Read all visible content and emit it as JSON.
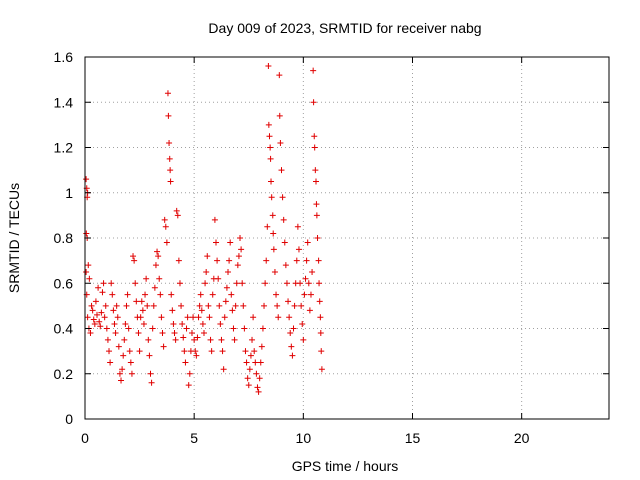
{
  "chart_data": {
    "type": "scatter",
    "title": "Day 009 of 2023, SRMTID for receiver nabg",
    "xlabel": "GPS time / hours",
    "ylabel": "SRMTID / TECUs",
    "xlim": [
      0,
      24
    ],
    "ylim": [
      0,
      1.6
    ],
    "x_ticks": [
      0,
      5,
      10,
      15,
      20
    ],
    "x_tick_labels": [
      "0",
      "5",
      "10",
      "15",
      "20"
    ],
    "y_ticks": [
      0,
      0.2,
      0.4,
      0.6,
      0.8,
      1.0,
      1.2,
      1.4,
      1.6
    ],
    "y_tick_labels": [
      "0",
      "0.2",
      "0.4",
      "0.6",
      "0.8",
      "1",
      "1.2",
      "1.4",
      "1.6"
    ],
    "grid": true,
    "marker": "+",
    "marker_color": "#e00000",
    "series": [
      {
        "name": "SRMTID",
        "points": [
          [
            0.05,
            1.06
          ],
          [
            0.08,
            1.02
          ],
          [
            0.1,
            0.98
          ],
          [
            0.12,
            1.0
          ],
          [
            0.06,
            0.82
          ],
          [
            0.1,
            0.8
          ],
          [
            0.05,
            0.65
          ],
          [
            0.15,
            0.68
          ],
          [
            0.2,
            0.62
          ],
          [
            0.08,
            0.55
          ],
          [
            0.12,
            0.45
          ],
          [
            0.18,
            0.4
          ],
          [
            0.25,
            0.38
          ],
          [
            0.3,
            0.5
          ],
          [
            0.35,
            0.48
          ],
          [
            0.4,
            0.44
          ],
          [
            0.45,
            0.42
          ],
          [
            0.5,
            0.52
          ],
          [
            0.55,
            0.46
          ],
          [
            0.6,
            0.58
          ],
          [
            0.65,
            0.43
          ],
          [
            0.7,
            0.41
          ],
          [
            0.75,
            0.47
          ],
          [
            0.8,
            0.56
          ],
          [
            0.85,
            0.6
          ],
          [
            0.9,
            0.45
          ],
          [
            0.95,
            0.5
          ],
          [
            1.0,
            0.4
          ],
          [
            1.05,
            0.35
          ],
          [
            1.1,
            0.3
          ],
          [
            1.15,
            0.25
          ],
          [
            1.2,
            0.6
          ],
          [
            1.25,
            0.55
          ],
          [
            1.3,
            0.48
          ],
          [
            1.35,
            0.42
          ],
          [
            1.4,
            0.38
          ],
          [
            1.45,
            0.5
          ],
          [
            1.5,
            0.45
          ],
          [
            1.55,
            0.32
          ],
          [
            1.6,
            0.2
          ],
          [
            1.65,
            0.17
          ],
          [
            1.7,
            0.22
          ],
          [
            1.75,
            0.28
          ],
          [
            1.8,
            0.35
          ],
          [
            1.85,
            0.42
          ],
          [
            1.9,
            0.5
          ],
          [
            1.95,
            0.55
          ],
          [
            2.0,
            0.4
          ],
          [
            2.05,
            0.3
          ],
          [
            2.1,
            0.25
          ],
          [
            2.15,
            0.2
          ],
          [
            2.2,
            0.72
          ],
          [
            2.25,
            0.7
          ],
          [
            2.3,
            0.6
          ],
          [
            2.35,
            0.52
          ],
          [
            2.4,
            0.45
          ],
          [
            2.45,
            0.38
          ],
          [
            2.5,
            0.3
          ],
          [
            2.55,
            0.45
          ],
          [
            2.6,
            0.52
          ],
          [
            2.65,
            0.48
          ],
          [
            2.7,
            0.42
          ],
          [
            2.75,
            0.55
          ],
          [
            2.8,
            0.62
          ],
          [
            2.85,
            0.5
          ],
          [
            2.9,
            0.35
          ],
          [
            2.95,
            0.28
          ],
          [
            3.0,
            0.2
          ],
          [
            3.05,
            0.16
          ],
          [
            3.1,
            0.4
          ],
          [
            3.15,
            0.5
          ],
          [
            3.2,
            0.58
          ],
          [
            3.25,
            0.68
          ],
          [
            3.3,
            0.74
          ],
          [
            3.35,
            0.72
          ],
          [
            3.4,
            0.62
          ],
          [
            3.45,
            0.55
          ],
          [
            3.5,
            0.45
          ],
          [
            3.55,
            0.38
          ],
          [
            3.6,
            0.32
          ],
          [
            3.65,
            0.88
          ],
          [
            3.7,
            0.85
          ],
          [
            3.75,
            0.78
          ],
          [
            3.8,
            1.44
          ],
          [
            3.82,
            1.34
          ],
          [
            3.85,
            1.22
          ],
          [
            3.88,
            1.15
          ],
          [
            3.9,
            1.1
          ],
          [
            3.92,
            1.05
          ],
          [
            3.95,
            0.55
          ],
          [
            4.0,
            0.48
          ],
          [
            4.05,
            0.42
          ],
          [
            4.1,
            0.38
          ],
          [
            4.15,
            0.35
          ],
          [
            4.2,
            0.92
          ],
          [
            4.25,
            0.9
          ],
          [
            4.3,
            0.7
          ],
          [
            4.35,
            0.6
          ],
          [
            4.4,
            0.5
          ],
          [
            4.45,
            0.42
          ],
          [
            4.5,
            0.36
          ],
          [
            4.55,
            0.3
          ],
          [
            4.6,
            0.25
          ],
          [
            4.65,
            0.4
          ],
          [
            4.7,
            0.45
          ],
          [
            4.75,
            0.15
          ],
          [
            4.8,
            0.2
          ],
          [
            4.85,
            0.3
          ],
          [
            4.9,
            0.38
          ],
          [
            4.95,
            0.45
          ],
          [
            5.0,
            0.35
          ],
          [
            5.05,
            0.3
          ],
          [
            5.1,
            0.28
          ],
          [
            5.15,
            0.36
          ],
          [
            5.2,
            0.45
          ],
          [
            5.25,
            0.5
          ],
          [
            5.3,
            0.55
          ],
          [
            5.35,
            0.48
          ],
          [
            5.4,
            0.42
          ],
          [
            5.45,
            0.38
          ],
          [
            5.5,
            0.6
          ],
          [
            5.55,
            0.65
          ],
          [
            5.6,
            0.72
          ],
          [
            5.65,
            0.5
          ],
          [
            5.7,
            0.45
          ],
          [
            5.75,
            0.35
          ],
          [
            5.8,
            0.3
          ],
          [
            5.85,
            0.55
          ],
          [
            5.9,
            0.62
          ],
          [
            5.95,
            0.88
          ],
          [
            6.0,
            0.78
          ],
          [
            6.05,
            0.7
          ],
          [
            6.1,
            0.62
          ],
          [
            6.15,
            0.5
          ],
          [
            6.2,
            0.42
          ],
          [
            6.25,
            0.35
          ],
          [
            6.3,
            0.3
          ],
          [
            6.35,
            0.22
          ],
          [
            6.4,
            0.45
          ],
          [
            6.45,
            0.52
          ],
          [
            6.5,
            0.58
          ],
          [
            6.55,
            0.65
          ],
          [
            6.6,
            0.7
          ],
          [
            6.65,
            0.78
          ],
          [
            6.7,
            0.55
          ],
          [
            6.75,
            0.48
          ],
          [
            6.8,
            0.4
          ],
          [
            6.85,
            0.35
          ],
          [
            6.9,
            0.5
          ],
          [
            6.95,
            0.6
          ],
          [
            7.0,
            0.68
          ],
          [
            7.05,
            0.72
          ],
          [
            7.1,
            0.8
          ],
          [
            7.15,
            0.75
          ],
          [
            7.2,
            0.6
          ],
          [
            7.25,
            0.5
          ],
          [
            7.3,
            0.4
          ],
          [
            7.35,
            0.3
          ],
          [
            7.4,
            0.25
          ],
          [
            7.45,
            0.18
          ],
          [
            7.5,
            0.15
          ],
          [
            7.55,
            0.22
          ],
          [
            7.6,
            0.28
          ],
          [
            7.65,
            0.35
          ],
          [
            7.7,
            0.45
          ],
          [
            7.75,
            0.3
          ],
          [
            7.8,
            0.25
          ],
          [
            7.85,
            0.2
          ],
          [
            7.9,
            0.14
          ],
          [
            7.95,
            0.12
          ],
          [
            8.0,
            0.18
          ],
          [
            8.05,
            0.25
          ],
          [
            8.1,
            0.32
          ],
          [
            8.15,
            0.4
          ],
          [
            8.2,
            0.5
          ],
          [
            8.25,
            0.6
          ],
          [
            8.3,
            0.7
          ],
          [
            8.35,
            0.85
          ],
          [
            8.4,
            1.56
          ],
          [
            8.42,
            1.3
          ],
          [
            8.45,
            1.25
          ],
          [
            8.48,
            1.2
          ],
          [
            8.5,
            1.15
          ],
          [
            8.52,
            1.05
          ],
          [
            8.55,
            0.98
          ],
          [
            8.6,
            0.9
          ],
          [
            8.62,
            0.82
          ],
          [
            8.65,
            0.75
          ],
          [
            8.7,
            0.65
          ],
          [
            8.75,
            0.55
          ],
          [
            8.8,
            0.5
          ],
          [
            8.85,
            0.45
          ],
          [
            8.9,
            1.52
          ],
          [
            8.92,
            1.34
          ],
          [
            8.95,
            1.22
          ],
          [
            9.0,
            1.1
          ],
          [
            9.05,
            0.98
          ],
          [
            9.1,
            0.88
          ],
          [
            9.15,
            0.78
          ],
          [
            9.2,
            0.68
          ],
          [
            9.25,
            0.6
          ],
          [
            9.3,
            0.52
          ],
          [
            9.35,
            0.45
          ],
          [
            9.4,
            0.38
          ],
          [
            9.45,
            0.32
          ],
          [
            9.5,
            0.28
          ],
          [
            9.55,
            0.4
          ],
          [
            9.6,
            0.5
          ],
          [
            9.65,
            0.6
          ],
          [
            9.7,
            0.7
          ],
          [
            9.75,
            0.85
          ],
          [
            9.8,
            0.75
          ],
          [
            9.85,
            0.6
          ],
          [
            9.9,
            0.5
          ],
          [
            9.95,
            0.42
          ],
          [
            10.0,
            0.35
          ],
          [
            10.05,
            0.55
          ],
          [
            10.1,
            0.62
          ],
          [
            10.15,
            0.7
          ],
          [
            10.2,
            0.78
          ],
          [
            10.25,
            0.6
          ],
          [
            10.3,
            0.48
          ],
          [
            10.35,
            0.55
          ],
          [
            10.4,
            0.65
          ],
          [
            10.45,
            1.54
          ],
          [
            10.47,
            1.4
          ],
          [
            10.5,
            1.25
          ],
          [
            10.52,
            1.2
          ],
          [
            10.55,
            1.1
          ],
          [
            10.58,
            1.05
          ],
          [
            10.6,
            0.95
          ],
          [
            10.62,
            0.9
          ],
          [
            10.65,
            0.8
          ],
          [
            10.7,
            0.7
          ],
          [
            10.72,
            0.6
          ],
          [
            10.75,
            0.52
          ],
          [
            10.78,
            0.45
          ],
          [
            10.8,
            0.38
          ],
          [
            10.82,
            0.3
          ],
          [
            10.85,
            0.22
          ]
        ]
      }
    ]
  }
}
